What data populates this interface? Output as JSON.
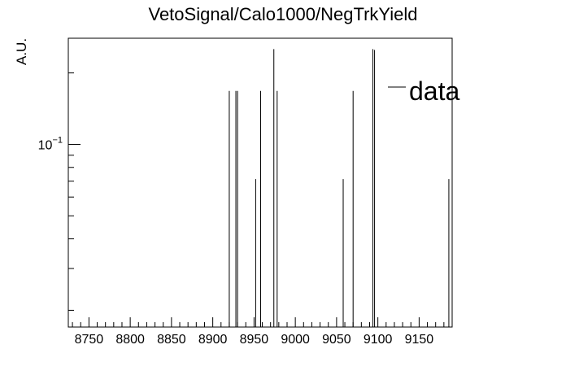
{
  "chart_data": {
    "type": "histogram",
    "title": "VetoSignal/Calo1000/NegTrkYield",
    "xlabel": "",
    "ylabel": "A.U.",
    "y_scale": "log",
    "xlim": [
      8725,
      9190
    ],
    "ylim": [
      0.017,
      0.28
    ],
    "x_ticks": [
      "8750",
      "8800",
      "8850",
      "8900",
      "8950",
      "9000",
      "9050",
      "9100",
      "9150"
    ],
    "y_tick_labels": [
      {
        "base": "10",
        "exp": "−1",
        "value": 0.1
      }
    ],
    "legend": {
      "entries": [
        "data"
      ],
      "position": "top-right"
    },
    "series": [
      {
        "name": "data",
        "x": [
          8920,
          8928,
          8930,
          8952,
          8958,
          8974,
          8978,
          9058,
          9070,
          9094,
          9096,
          9186
        ],
        "y": [
          0.1667,
          0.1667,
          0.1667,
          0.0714,
          0.1667,
          0.25,
          0.1667,
          0.0714,
          0.1667,
          0.25,
          0.0455,
          0.0714
        ],
        "y_error_low": [
          0,
          0,
          0,
          0.0714,
          0,
          0,
          0,
          0.0714,
          0,
          0,
          0.0455,
          0.0714
        ],
        "y_error_high": [
          0,
          0,
          0,
          0,
          0,
          0,
          0,
          0,
          0,
          0,
          0.2045,
          0
        ]
      }
    ],
    "grid": false
  }
}
